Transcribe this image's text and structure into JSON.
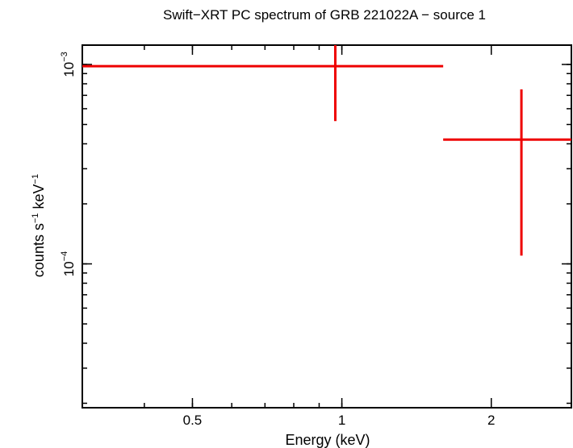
{
  "chart_data": {
    "type": "scatter",
    "title": "Swift−XRT PC spectrum of GRB 221022A − source 1",
    "xlabel": "Energy (keV)",
    "ylabel": {
      "base": "counts s",
      "sup1": "−1",
      "mid": " keV",
      "sup2": "−1"
    },
    "x_scale": "log",
    "y_scale": "log",
    "xlim": [
      0.3,
      2.9
    ],
    "ylim": [
      1.9e-05,
      0.00125
    ],
    "x_ticks": [
      {
        "value": 0.5,
        "label": "0.5"
      },
      {
        "value": 1,
        "label": "1"
      },
      {
        "value": 2,
        "label": "2"
      }
    ],
    "y_ticks": [
      {
        "value": 0.001,
        "base": "10",
        "exp": "−3"
      },
      {
        "value": 0.0001,
        "base": "10",
        "exp": "−4"
      }
    ],
    "series": [
      {
        "color": "#ee0000",
        "points": [
          {
            "x": 0.97,
            "x_lo": 0.3,
            "x_hi": 1.6,
            "y": 0.00098,
            "y_lo": 0.00052,
            "y_hi": 0.00138
          },
          {
            "x": 2.3,
            "x_lo": 1.6,
            "x_hi": 2.9,
            "y": 0.00042,
            "y_lo": 0.00011,
            "y_hi": 0.00075
          }
        ]
      }
    ]
  }
}
